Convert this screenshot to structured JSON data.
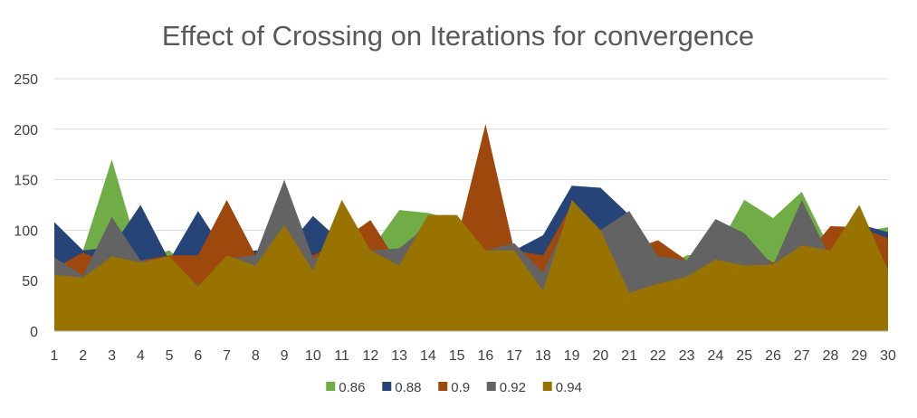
{
  "chart_data": {
    "type": "area",
    "title": "Effect of Crossing on Iterations for convergence",
    "xlabel": "",
    "ylabel": "",
    "categories": [
      "1",
      "2",
      "3",
      "4",
      "5",
      "6",
      "7",
      "8",
      "9",
      "10",
      "11",
      "12",
      "13",
      "14",
      "15",
      "16",
      "17",
      "18",
      "19",
      "20",
      "21",
      "22",
      "23",
      "24",
      "25",
      "26",
      "27",
      "28",
      "29",
      "30"
    ],
    "ylim": [
      0,
      250
    ],
    "yticks": [
      0,
      50,
      100,
      150,
      200,
      250
    ],
    "grid": true,
    "legend": "bottom",
    "series": [
      {
        "name": "0.86",
        "color": "#70AD47",
        "values": [
          58,
          80,
          170,
          72,
          80,
          55,
          95,
          78,
          95,
          80,
          115,
          80,
          120,
          117,
          110,
          80,
          80,
          60,
          128,
          75,
          50,
          60,
          75,
          78,
          130,
          112,
          138,
          80,
          98,
          103
        ]
      },
      {
        "name": "0.88",
        "color": "#264478",
        "values": [
          108,
          80,
          83,
          125,
          70,
          119,
          75,
          80,
          80,
          114,
          88,
          82,
          72,
          112,
          113,
          80,
          80,
          95,
          144,
          142,
          115,
          70,
          55,
          70,
          60,
          68,
          75,
          86,
          106,
          98
        ]
      },
      {
        "name": "0.9",
        "color": "#9E480E",
        "values": [
          62,
          78,
          65,
          70,
          75,
          75,
          130,
          75,
          85,
          75,
          90,
          110,
          65,
          85,
          90,
          205,
          80,
          75,
          125,
          80,
          80,
          90,
          70,
          72,
          85,
          68,
          70,
          104,
          103,
          92
        ]
      },
      {
        "name": "0.92",
        "color": "#636363",
        "values": [
          73,
          55,
          113,
          70,
          72,
          45,
          72,
          75,
          150,
          72,
          85,
          80,
          82,
          105,
          113,
          80,
          87,
          58,
          120,
          100,
          119,
          74,
          70,
          111,
          97,
          65,
          130,
          72,
          95,
          62
        ]
      },
      {
        "name": "0.94",
        "color": "#997300",
        "values": [
          56,
          53,
          74,
          68,
          74,
          44,
          75,
          65,
          105,
          60,
          130,
          80,
          65,
          115,
          115,
          80,
          80,
          40,
          130,
          100,
          38,
          47,
          54,
          71,
          65,
          66,
          85,
          80,
          125,
          60
        ]
      }
    ]
  }
}
